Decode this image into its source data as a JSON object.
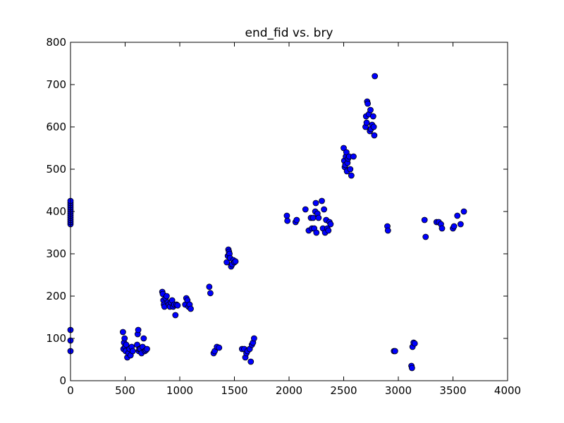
{
  "chart_data": {
    "type": "scatter",
    "title": "end_fid vs. bry",
    "xlabel": "",
    "ylabel": "",
    "xlim": [
      0,
      4000
    ],
    "ylim": [
      0,
      800
    ],
    "xticks": [
      0,
      500,
      1000,
      1500,
      2000,
      2500,
      3000,
      3500,
      4000
    ],
    "yticks": [
      0,
      100,
      200,
      300,
      400,
      500,
      600,
      700,
      800
    ],
    "grid": false,
    "legend": "none",
    "marker_color": "#0000ff",
    "marker_edge_color": "#000000",
    "series": [
      {
        "x": [
          0,
          0,
          0,
          0,
          0,
          0,
          0,
          0,
          0,
          0,
          0,
          0,
          0,
          0,
          0,
          480,
          485,
          490,
          495,
          500,
          505,
          510,
          520,
          530,
          540,
          550,
          560,
          570,
          610,
          615,
          620,
          625,
          630,
          640,
          650,
          660,
          670,
          680,
          690,
          700,
          840,
          845,
          850,
          855,
          860,
          870,
          880,
          890,
          900,
          910,
          920,
          930,
          940,
          950,
          960,
          970,
          980,
          1050,
          1060,
          1070,
          1080,
          1090,
          1100,
          1270,
          1280,
          1310,
          1320,
          1340,
          1360,
          1430,
          1440,
          1445,
          1450,
          1455,
          1460,
          1470,
          1480,
          1490,
          1500,
          1510,
          1570,
          1590,
          1600,
          1610,
          1620,
          1640,
          1650,
          1660,
          1670,
          1680,
          1980,
          1985,
          2060,
          2070,
          2150,
          2180,
          2200,
          2210,
          2220,
          2230,
          2240,
          2245,
          2250,
          2260,
          2270,
          2300,
          2310,
          2320,
          2330,
          2340,
          2350,
          2360,
          2370,
          2380,
          2500,
          2505,
          2510,
          2515,
          2520,
          2525,
          2530,
          2535,
          2540,
          2550,
          2560,
          2570,
          2590,
          2700,
          2705,
          2710,
          2715,
          2720,
          2730,
          2740,
          2745,
          2750,
          2760,
          2770,
          2775,
          2780,
          2785,
          2900,
          2905,
          2960,
          2970,
          3120,
          3125,
          3130,
          3140,
          3150,
          3240,
          3250,
          3350,
          3370,
          3390,
          3400,
          3500,
          3510,
          3540,
          3570,
          3600
        ],
        "y": [
          370,
          375,
          380,
          385,
          390,
          395,
          400,
          405,
          410,
          415,
          420,
          425,
          70,
          95,
          120,
          115,
          75,
          90,
          100,
          80,
          70,
          85,
          55,
          65,
          75,
          60,
          80,
          70,
          85,
          110,
          120,
          70,
          75,
          75,
          65,
          80,
          100,
          70,
          72,
          75,
          210,
          205,
          190,
          180,
          175,
          195,
          200,
          185,
          180,
          175,
          185,
          190,
          175,
          180,
          155,
          180,
          178,
          180,
          195,
          190,
          175,
          180,
          170,
          222,
          207,
          65,
          70,
          80,
          78,
          280,
          295,
          310,
          305,
          300,
          290,
          270,
          275,
          285,
          280,
          282,
          75,
          75,
          55,
          65,
          70,
          75,
          45,
          85,
          90,
          100,
          390,
          378,
          375,
          380,
          405,
          355,
          385,
          360,
          385,
          360,
          400,
          420,
          350,
          395,
          385,
          425,
          360,
          405,
          350,
          380,
          360,
          355,
          375,
          370,
          550,
          520,
          505,
          510,
          530,
          540,
          495,
          515,
          525,
          530,
          500,
          485,
          530,
          600,
          625,
          610,
          660,
          655,
          630,
          590,
          640,
          595,
          605,
          625,
          600,
          580,
          720,
          365,
          355,
          70,
          70,
          35,
          30,
          80,
          90,
          88,
          380,
          340,
          375,
          375,
          370,
          360,
          360,
          365,
          390,
          370,
          400
        ]
      }
    ]
  }
}
